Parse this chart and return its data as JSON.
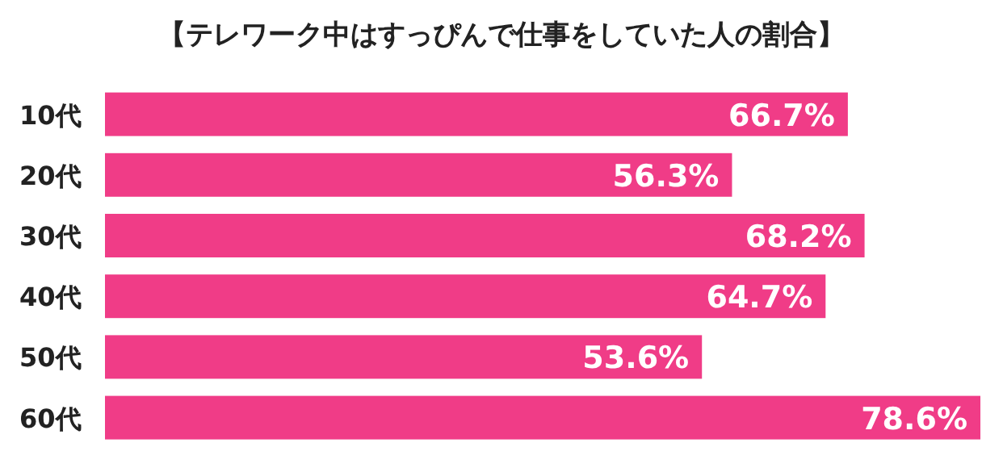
{
  "chart_data": {
    "type": "bar",
    "orientation": "horizontal",
    "title": "【テレワーク中はすっぴんで仕事をしていた人の割合】",
    "categories": [
      "10代",
      "20代",
      "30代",
      "40代",
      "50代",
      "60代"
    ],
    "values": [
      66.7,
      56.3,
      68.2,
      64.7,
      53.6,
      78.6
    ],
    "value_labels": [
      "66.7%",
      "56.3%",
      "68.2%",
      "64.7%",
      "53.6%",
      "78.6%"
    ],
    "color": "#f03c87"
  }
}
